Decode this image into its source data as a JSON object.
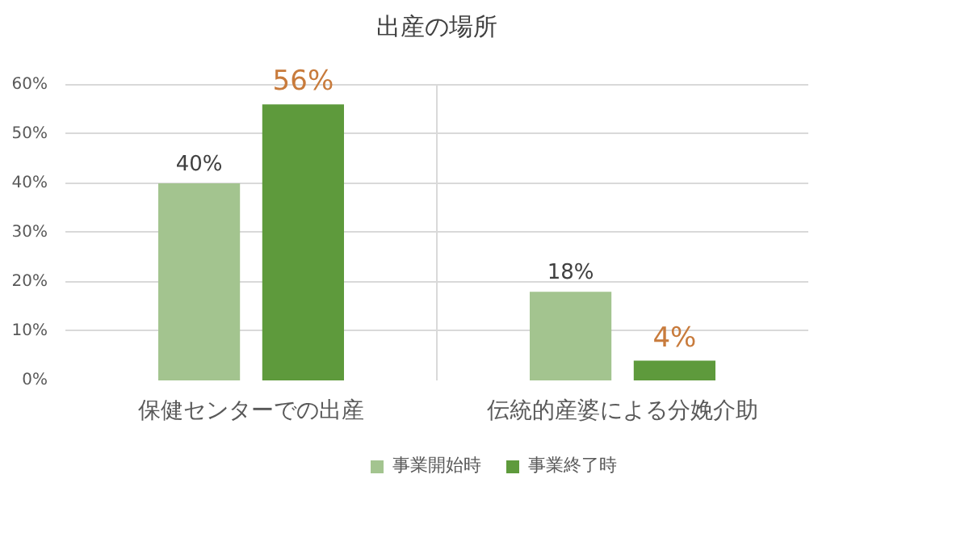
{
  "chart_data": {
    "type": "bar",
    "title": "出産の場所",
    "categories": [
      "保健センターでの出産",
      "伝統的産婆による分娩介助"
    ],
    "series": [
      {
        "name": "事業開始時",
        "color": "#a3c48f",
        "values": [
          40,
          18
        ],
        "value_labels": [
          "40%",
          "18%"
        ]
      },
      {
        "name": "事業終了時",
        "color": "#5e9a3c",
        "values": [
          56,
          4
        ],
        "value_labels": [
          "56%",
          "4%"
        ]
      }
    ],
    "ylim": [
      0,
      60
    ],
    "yticks": [
      {
        "value": 0,
        "label": "0%"
      },
      {
        "value": 10,
        "label": "10%"
      },
      {
        "value": 20,
        "label": "20%"
      },
      {
        "value": 30,
        "label": "30%"
      },
      {
        "value": 40,
        "label": "40%"
      },
      {
        "value": 50,
        "label": "50%"
      },
      {
        "value": 60,
        "label": "60%"
      }
    ],
    "grid": true,
    "legend": "bottom"
  }
}
